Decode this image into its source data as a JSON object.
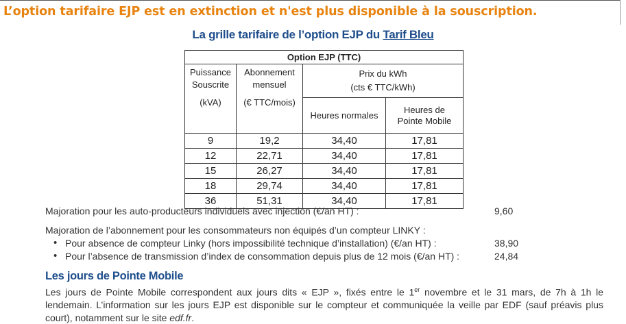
{
  "warning": "L’option tarifaire EJP est en extinction et n'est plus disponible à la souscription.",
  "grid_title": {
    "prefix": "La grille tarifaire de l’option EJP du ",
    "link": "Tarif Bleu"
  },
  "table": {
    "title": "Option EJP (TTC)",
    "headers": {
      "power": [
        "Puissance",
        "Souscrite",
        "(kVA)"
      ],
      "subscription": [
        "Abonnement",
        "mensuel",
        "(€ TTC/mois)"
      ],
      "price": [
        "Prix du kWh",
        "(cts € TTC/kWh)"
      ],
      "normal": "Heures normales",
      "peak": [
        "Heures de",
        "Pointe Mobile"
      ]
    },
    "rows": [
      [
        "9",
        "19,2",
        "34,40",
        "17,81"
      ],
      [
        "12",
        "22,71",
        "34,40",
        "17,81"
      ],
      [
        "15",
        "26,27",
        "34,40",
        "17,81"
      ],
      [
        "18",
        "29,74",
        "34,40",
        "17,81"
      ],
      [
        "36",
        "51,31",
        "34,40",
        "17,81"
      ]
    ]
  },
  "surcharges": {
    "producers_label": "Majoration pour les auto-producteurs individuels avec injection (€/an HT) :",
    "producers_value": "9,60",
    "linky_intro": "Majoration de l’abonnement pour les consommateurs non équipés d’un compteur LINKY :",
    "items": [
      {
        "label": "Pour absence de compteur Linky (hors impossibilité technique d’installation) (€/an HT) :",
        "value": "38,90"
      },
      {
        "label": "Pour l’absence de transmission d’index de consommation depuis plus de 12 mois (€/an HT) :",
        "value": "24,84"
      }
    ]
  },
  "peak_days": {
    "title": "Les jours de Pointe Mobile",
    "text_1": "Les jours de Pointe Mobile correspondent aux jours dits « EJP », fixés entre le 1",
    "sup": "er",
    "text_2": " novembre et le 31 mars, de 7h à 1h le lendemain. L’information sur les jours EJP est disponible sur le compteur et communiquée la veille par EDF (sauf préavis plus court), notamment sur le site ",
    "site": "edf.fr",
    "end": "."
  }
}
